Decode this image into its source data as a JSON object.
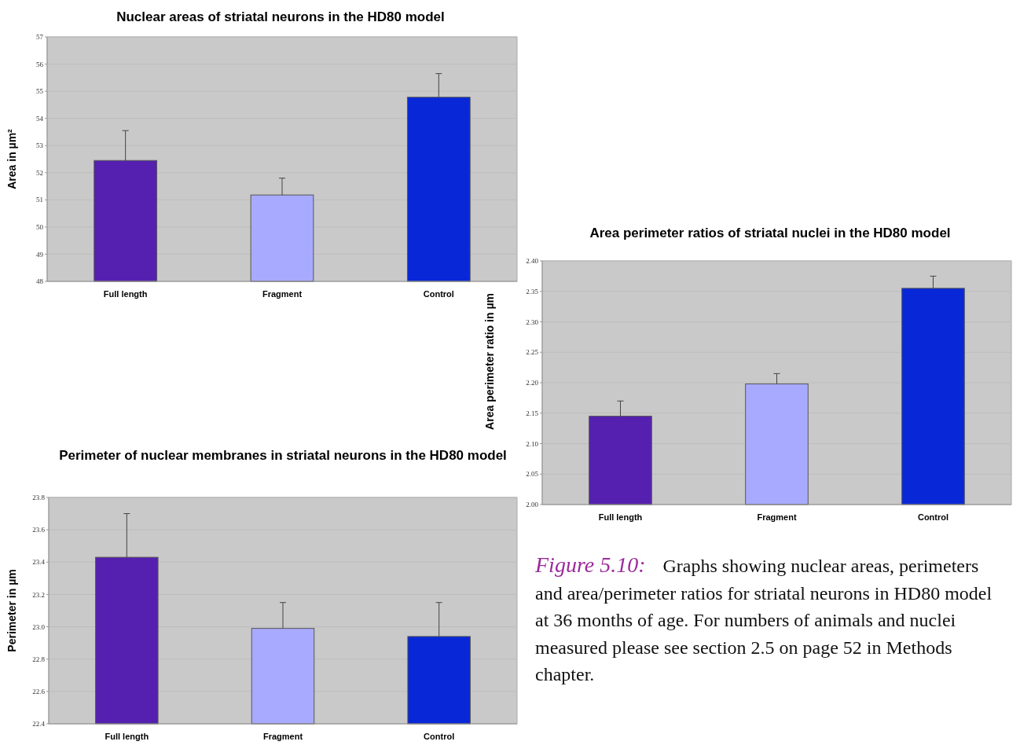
{
  "chart_data": [
    {
      "type": "bar",
      "title": "Nuclear areas of striatal neurons in the HD80 model",
      "ylabel": "Area in µm²",
      "categories": [
        "Full length",
        "Fragment",
        "Control"
      ],
      "values": [
        52.45,
        51.18,
        54.78
      ],
      "errors": [
        [
          52.45,
          53.55
        ],
        [
          51.18,
          51.8
        ],
        [
          54.78,
          55.65
        ]
      ],
      "colors": [
        "#5520b0",
        "#a8aaff",
        "#0828d8"
      ],
      "ylim": [
        48,
        57
      ],
      "yticks": [
        48,
        49,
        50,
        51,
        52,
        53,
        54,
        55,
        56,
        57
      ],
      "grid": "y"
    },
    {
      "type": "bar",
      "title": "Area perimeter ratios of striatal nuclei in the HD80 model",
      "ylabel": "Area perimeter ratio in µm",
      "categories": [
        "Full length",
        "Fragment",
        "Control"
      ],
      "values": [
        2.145,
        2.198,
        2.355
      ],
      "errors": [
        [
          2.145,
          2.17
        ],
        [
          2.198,
          2.215
        ],
        [
          2.355,
          2.375
        ]
      ],
      "colors": [
        "#5520b0",
        "#a8aaff",
        "#0828d8"
      ],
      "ylim": [
        2.0,
        2.4
      ],
      "yticks": [
        {
          "value": 2.0,
          "label": "2.00"
        },
        {
          "value": 2.05,
          "label": "2.05"
        },
        {
          "value": 2.1,
          "label": "2.10"
        },
        {
          "value": 2.15,
          "label": "2.15"
        },
        {
          "value": 2.2,
          "label": "2.20"
        },
        {
          "value": 2.25,
          "label": "2.25"
        },
        {
          "value": 2.3,
          "label": "2.30"
        },
        {
          "value": 2.35,
          "label": "2.35"
        },
        {
          "value": 2.4,
          "label": "2.40"
        }
      ],
      "grid": "y",
      "annotations": [
        "Figure 5.10:",
        "Graphs showing nuclear areas, perimeters and area/perimeter ratios for striatal neurons in HD80 model at 36 months of age.  For numbers of animals and nuclei measured please see section 2.5 on page 52 in Methods chapter."
      ]
    },
    {
      "type": "bar",
      "title": "Perimeter of nuclear membranes in striatal neurons in the HD80 model",
      "ylabel": "Perimeter in µm",
      "categories": [
        "Full length",
        "Fragment",
        "Control"
      ],
      "values": [
        23.43,
        22.99,
        22.94
      ],
      "errors": [
        [
          23.43,
          23.7
        ],
        [
          22.99,
          23.15
        ],
        [
          22.94,
          23.15
        ]
      ],
      "colors": [
        "#5520b0",
        "#a8aaff",
        "#0828d8"
      ],
      "ylim": [
        22.4,
        23.8
      ],
      "yticks": [
        22.4,
        22.6,
        22.8,
        {
          "value": 23.0,
          "label": "23.0"
        },
        23.2,
        23.4,
        23.6,
        23.8
      ],
      "grid": "y"
    }
  ]
}
